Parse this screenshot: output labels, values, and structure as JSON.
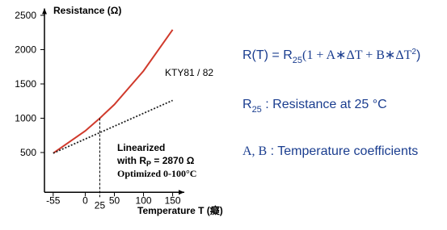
{
  "chart_data": {
    "type": "line",
    "title": "Resistance (Ω)",
    "x_label": "Temperature T (癡)",
    "x": [
      -55,
      0,
      25,
      50,
      100,
      150
    ],
    "series": [
      {
        "name": "KTY81 / 82",
        "color": "#d03a2c",
        "values": [
          490,
          815,
          1000,
          1200,
          1690,
          2290
        ]
      },
      {
        "name": "Linearized",
        "color": "#222222",
        "dashed": true,
        "values": [
          490,
          697,
          790,
          884,
          1072,
          1260
        ]
      }
    ],
    "xlim": [
      -70,
      170
    ],
    "ylim": [
      -80,
      2600
    ],
    "xticks": [
      -55,
      0,
      50,
      100,
      150
    ],
    "yticks": [
      500,
      1000,
      1500,
      2000,
      2500
    ],
    "marker_x": 25,
    "annotations": {
      "rp_prefix": "with R",
      "rp_sub": "P",
      "rp_value": " = 2870 Ω",
      "optimized": "Optimized 0-100°C"
    }
  },
  "formula": {
    "lhs": "R(T) = R",
    "sub": "25",
    "body": "(1 + A∗ΔT + B∗ΔT",
    "sup": "2",
    "close": ")"
  },
  "definitions": [
    {
      "symbol": "R",
      "sub": "25",
      "text": "  : Resistance at 25 °C"
    },
    {
      "symbol": "A, B",
      "text": " : Temperature coefficients"
    }
  ]
}
